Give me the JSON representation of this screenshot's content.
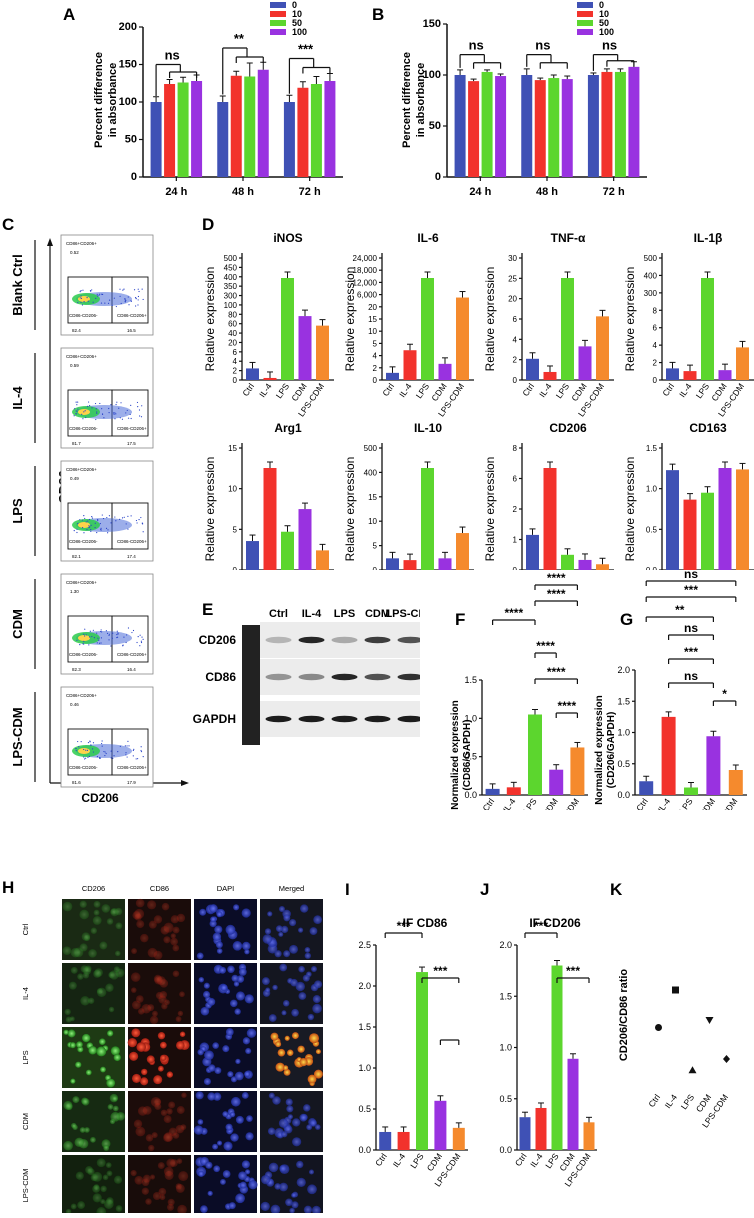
{
  "colors": {
    "blue": "#3F51B5",
    "red": "#F2322C",
    "green": "#5CD62E",
    "purple": "#9932E0",
    "orange": "#F58A2D",
    "black": "#111111"
  },
  "groups": [
    "Ctrl",
    "IL-4",
    "LPS",
    "CDM",
    "LPS-CDM"
  ],
  "panelA": {
    "letter": "A",
    "ylabel": "Percent difference\nin absorbance",
    "legend": [
      "0",
      "10",
      "50",
      "100"
    ],
    "chart_data": {
      "type": "bar",
      "categories": [
        "24 h",
        "48 h",
        "72 h"
      ],
      "ylim": [
        0,
        200
      ],
      "yticks": [
        0,
        50,
        100,
        150,
        200
      ],
      "series": [
        {
          "name": "0",
          "values": [
            100,
            100,
            100
          ],
          "err": [
            7,
            8,
            9
          ]
        },
        {
          "name": "10",
          "values": [
            124,
            135,
            119
          ],
          "err": [
            6,
            6,
            8
          ]
        },
        {
          "name": "50",
          "values": [
            126,
            134,
            124
          ],
          "err": [
            7,
            18,
            10
          ]
        },
        {
          "name": "100",
          "values": [
            128,
            143,
            128
          ],
          "err": [
            8,
            10,
            10
          ]
        }
      ],
      "annotations": [
        "ns",
        "**",
        "***"
      ]
    }
  },
  "panelB": {
    "letter": "B",
    "ylabel": "Percent difference\nin absorbance",
    "legend": [
      "0",
      "10",
      "50",
      "100"
    ],
    "chart_data": {
      "type": "bar",
      "categories": [
        "24 h",
        "48 h",
        "72 h"
      ],
      "ylim": [
        0,
        150
      ],
      "yticks": [
        0,
        50,
        100,
        150
      ],
      "series": [
        {
          "name": "0",
          "values": [
            100,
            100,
            100
          ],
          "err": [
            5,
            6,
            2
          ]
        },
        {
          "name": "10",
          "values": [
            94,
            95,
            103
          ],
          "err": [
            2,
            2,
            3
          ]
        },
        {
          "name": "50",
          "values": [
            103,
            97,
            103
          ],
          "err": [
            2,
            3,
            3
          ]
        },
        {
          "name": "100",
          "values": [
            99,
            96,
            108
          ],
          "err": [
            2,
            3,
            5
          ]
        }
      ],
      "annotations": [
        "ns",
        "ns",
        "ns"
      ]
    }
  },
  "panelC": {
    "letter": "C",
    "ylabel": "CD86",
    "xlabel": "CD206",
    "rows": [
      {
        "label": "Blank Ctrl",
        "ul": "CD86+CD206+",
        "ul_v": "0.52",
        "ll": "CD86-CD206-",
        "ll_v": "82.4",
        "lr": "CD86-CD206+",
        "lr_v": "16.5"
      },
      {
        "label": "IL-4",
        "ul": "CD86+CD206+",
        "ul_v": "0.59",
        "ll": "CD86-CD206-",
        "ll_v": "81.7",
        "lr": "CD86-CD206+",
        "lr_v": "17.5"
      },
      {
        "label": "LPS",
        "ul": "CD86+CD206+",
        "ul_v": "0.49",
        "ll": "CD86-CD206-",
        "ll_v": "82.1",
        "lr": "CD86-CD206+",
        "lr_v": "17.4"
      },
      {
        "label": "CDM",
        "ul": "CD86+CD206+",
        "ul_v": "1.30",
        "ll": "CD86-CD206-",
        "ll_v": "82.3",
        "lr": "CD86-CD206+",
        "lr_v": "16.4"
      },
      {
        "label": "LPS-CDM",
        "ul": "CD86+CD206+",
        "ul_v": "0.46",
        "ll": "CD86-CD206-",
        "ll_v": "81.6",
        "lr": "CD86-CD206+",
        "lr_v": "17.9"
      }
    ]
  },
  "panelD": {
    "letter": "D",
    "ylabel": "Relative expression",
    "charts": [
      {
        "title": "iNOS",
        "values": [
          1,
          0.1,
          450,
          45,
          25
        ],
        "ticks": [
          "0",
          "2",
          "4",
          "6",
          "20",
          "40",
          "60",
          "80",
          "100",
          "300",
          "350",
          "400",
          "450",
          "500"
        ]
      },
      {
        "title": "IL-6",
        "values": [
          1,
          17,
          20000,
          3.8,
          3000
        ],
        "ticks": [
          "0",
          "2",
          "4",
          "5",
          "10",
          "15",
          "20",
          "6,000",
          "12,000",
          "18,000",
          "24,000"
        ]
      },
      {
        "title": "TNF-α",
        "values": [
          1,
          0.3,
          27,
          2,
          7
        ],
        "ticks": [
          "0",
          "2",
          "4",
          "6",
          "20",
          "25",
          "30"
        ]
      },
      {
        "title": "IL-1β",
        "values": [
          1,
          0.7,
          440,
          0.8,
          6
        ],
        "ticks": [
          "0",
          "2",
          "4",
          "6",
          "8",
          "300",
          "400",
          "500"
        ]
      },
      {
        "title": "Arg1",
        "values": [
          1,
          10.5,
          1.5,
          3.3,
          0.6
        ],
        "ticks": [
          "0",
          "5",
          "10",
          "15"
        ]
      },
      {
        "title": "IL-10",
        "values": [
          1,
          0.8,
          430,
          1,
          8
        ],
        "ticks": [
          "0",
          "5",
          "10",
          "15",
          "400",
          "500"
        ]
      },
      {
        "title": "CD206",
        "values": [
          1,
          6.5,
          0.35,
          0.22,
          0.12
        ],
        "ticks": [
          "0",
          "1",
          "2",
          "6",
          "8"
        ]
      },
      {
        "title": "CD163",
        "values": [
          1,
          0.63,
          0.71,
          1.03,
          1.01
        ],
        "ticks": [
          "0.0",
          "0.5",
          "1.0",
          "1.5"
        ]
      }
    ]
  },
  "panelE": {
    "letter": "E",
    "lanes": [
      "Ctrl",
      "IL-4",
      "LPS",
      "CDM",
      "LPS-CDM"
    ],
    "rows": [
      "CD206",
      "CD86",
      "GAPDH"
    ]
  },
  "panelF": {
    "letter": "F",
    "ylabel": "Normalized expression\n(CD86/GAPDH)",
    "chart_data": {
      "type": "bar",
      "categories": [
        "Ctrl",
        "IL-4",
        "LPS",
        "CDM",
        "LPS-CDM"
      ],
      "values": [
        0.08,
        0.1,
        1.05,
        0.33,
        0.62
      ],
      "ylim": [
        0,
        1.5
      ],
      "yticks": [
        "0.0",
        "0.5",
        "1.0",
        "1.5"
      ],
      "annotations": [
        "****",
        "****",
        "****",
        "****",
        "****",
        "****"
      ]
    }
  },
  "panelG": {
    "letter": "G",
    "ylabel": "Normalized expression\n(CD206/GAPDH)",
    "chart_data": {
      "type": "bar",
      "categories": [
        "Ctrl",
        "IL-4",
        "LPS",
        "CDM",
        "LPS-CDM"
      ],
      "values": [
        0.22,
        1.25,
        0.12,
        0.94,
        0.4
      ],
      "ylim": [
        0,
        2.0
      ],
      "yticks": [
        "0.0",
        "0.5",
        "1.0",
        "1.5",
        "2.0"
      ],
      "annotations": [
        "ns",
        "***",
        "**",
        "ns",
        "***",
        "ns",
        "*"
      ]
    }
  },
  "panelH": {
    "letter": "H",
    "columns": [
      "CD206",
      "CD86",
      "DAPI",
      "Merged"
    ],
    "rows": [
      "Ctrl",
      "IL-4",
      "LPS",
      "CDM",
      "LPS-CDM"
    ]
  },
  "panelI": {
    "letter": "I",
    "title": "IF CD86",
    "chart_data": {
      "type": "bar",
      "categories": [
        "Ctrl",
        "IL-4",
        "LPS",
        "CDM",
        "LPS-CDM"
      ],
      "values": [
        0.22,
        0.22,
        2.17,
        0.6,
        0.27
      ],
      "ylim": [
        0,
        2.5
      ],
      "yticks": [
        "0.0",
        "0.5",
        "1.0",
        "1.5",
        "2.0",
        "2.5"
      ],
      "annotations": [
        "***",
        "***"
      ]
    }
  },
  "panelJ": {
    "letter": "J",
    "title": "IF CD206",
    "chart_data": {
      "type": "bar",
      "categories": [
        "Ctrl",
        "IL-4",
        "LPS",
        "CDM",
        "LPS-CDM"
      ],
      "values": [
        0.32,
        0.41,
        1.8,
        0.89,
        0.27
      ],
      "ylim": [
        0,
        2.0
      ],
      "yticks": [
        "0.0",
        "0.5",
        "1.0",
        "1.5",
        "2.0"
      ],
      "annotations": [
        "***",
        "***"
      ]
    }
  },
  "panelK": {
    "letter": "K",
    "ylabel": "CD206/CD86 ratio",
    "chart_data": {
      "type": "scatter",
      "categories": [
        "Ctrl",
        "IL-4",
        "LPS",
        "CDM",
        "LPS-CDM"
      ],
      "values": [
        1.4,
        1.9,
        0.83,
        1.5,
        0.98
      ],
      "ylim": [
        0.5,
        2.5
      ]
    }
  }
}
